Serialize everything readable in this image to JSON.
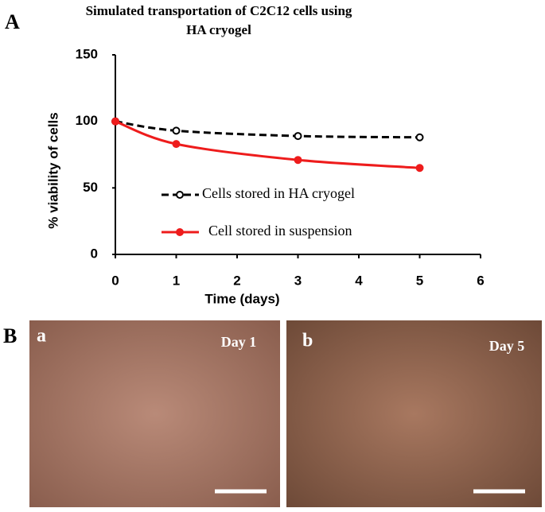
{
  "chart_data": {
    "type": "line",
    "title": "Simulated transportation of C2C12 cells using HA cryogel",
    "xlabel": "Time (days)",
    "ylabel": "% viability of cells",
    "x": [
      0,
      1,
      3,
      5
    ],
    "series": [
      {
        "name": "Cells stored in HA cryogel",
        "color": "#000000",
        "dash": true,
        "values": [
          100,
          93,
          89,
          88
        ]
      },
      {
        "name": "Cell stored in suspension",
        "color": "#ee1c1c",
        "dash": false,
        "values": [
          100,
          83,
          71,
          65
        ]
      }
    ],
    "xlim": [
      0,
      6
    ],
    "xticks": [
      0,
      1,
      2,
      3,
      4,
      5,
      6
    ],
    "ylim": [
      0,
      150
    ],
    "yticks": [
      0,
      50,
      100,
      150
    ],
    "grid": false
  },
  "panel_labels": [
    "A",
    "B"
  ],
  "images": [
    {
      "label": "a",
      "caption": "Day 1"
    },
    {
      "label": "b",
      "caption": "Day 5"
    }
  ]
}
